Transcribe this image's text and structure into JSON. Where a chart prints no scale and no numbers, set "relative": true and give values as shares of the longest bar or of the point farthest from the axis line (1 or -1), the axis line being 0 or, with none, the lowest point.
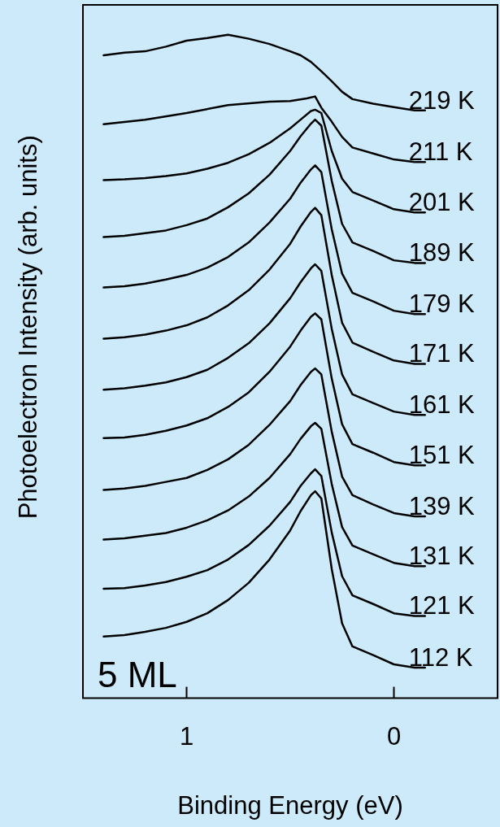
{
  "chart_data": {
    "type": "line",
    "relative": true,
    "xlabel": "Binding Energy (eV)",
    "ylabel": "Photoelectron Intensity (arb. units)",
    "xlim": [
      1.5,
      -0.5
    ],
    "xticks": [
      1,
      0
    ],
    "marker": "none",
    "line_style": "solid",
    "annotations": [
      "5 ML"
    ],
    "x": [
      1.4,
      1.3,
      1.2,
      1.1,
      1.0,
      0.9,
      0.8,
      0.7,
      0.6,
      0.5,
      0.45,
      0.4,
      0.38,
      0.35,
      0.3,
      0.25,
      0.2,
      0.1,
      0,
      -0.1,
      -0.15
    ],
    "series": [
      {
        "name": "219 K",
        "color": "#000000",
        "x": [
          1.4,
          1.3,
          1.2,
          1.1,
          1.0,
          0.9,
          0.8,
          0.7,
          0.6,
          0.5,
          0.45,
          0.4,
          0.35,
          0.3,
          0.25,
          0.2,
          0.1,
          0,
          -0.1,
          -0.15
        ],
        "values": [
          0.969,
          0.973,
          0.975,
          0.982,
          0.991,
          0.995,
          1.0,
          0.994,
          0.986,
          0.975,
          0.969,
          0.959,
          0.945,
          0.93,
          0.914,
          0.903,
          0.896,
          0.891,
          0.886,
          0.886
        ]
      },
      {
        "name": "211 K",
        "color": "#000000",
        "x": [
          1.4,
          1.2,
          1.0,
          0.8,
          0.6,
          0.5,
          0.42,
          0.38,
          0.35,
          0.3,
          0.25,
          0.2,
          0.1,
          0,
          -0.1,
          -0.15
        ],
        "values": [
          0.865,
          0.872,
          0.882,
          0.894,
          0.899,
          0.9,
          0.904,
          0.907,
          0.89,
          0.869,
          0.846,
          0.83,
          0.821,
          0.812,
          0.808,
          0.808
        ]
      },
      {
        "name": "201 K",
        "color": "#000000",
        "values": [
          0.781,
          0.782,
          0.784,
          0.787,
          0.791,
          0.798,
          0.807,
          0.82,
          0.837,
          0.859,
          0.872,
          0.885,
          0.887,
          0.882,
          0.825,
          0.783,
          0.763,
          0.75,
          0.737,
          0.732,
          0.732
        ]
      },
      {
        "name": "189 K",
        "color": "#000000",
        "values": [
          0.695,
          0.697,
          0.701,
          0.705,
          0.713,
          0.723,
          0.74,
          0.761,
          0.789,
          0.825,
          0.847,
          0.866,
          0.872,
          0.863,
          0.78,
          0.715,
          0.687,
          0.674,
          0.66,
          0.656,
          0.656
        ]
      },
      {
        "name": "179 K",
        "color": "#000000",
        "values": [
          0.619,
          0.621,
          0.625,
          0.631,
          0.638,
          0.649,
          0.665,
          0.687,
          0.717,
          0.753,
          0.777,
          0.797,
          0.803,
          0.793,
          0.707,
          0.64,
          0.611,
          0.598,
          0.584,
          0.579,
          0.579
        ]
      },
      {
        "name": "171 K",
        "color": "#000000",
        "values": [
          0.542,
          0.544,
          0.548,
          0.554,
          0.562,
          0.574,
          0.592,
          0.615,
          0.646,
          0.685,
          0.711,
          0.733,
          0.739,
          0.728,
          0.638,
          0.566,
          0.536,
          0.522,
          0.509,
          0.504,
          0.504
        ]
      },
      {
        "name": "161 K",
        "color": "#000000",
        "values": [
          0.465,
          0.467,
          0.471,
          0.476,
          0.484,
          0.495,
          0.513,
          0.535,
          0.565,
          0.603,
          0.627,
          0.648,
          0.654,
          0.644,
          0.557,
          0.488,
          0.458,
          0.445,
          0.432,
          0.427,
          0.427
        ]
      },
      {
        "name": "151 K",
        "color": "#000000",
        "values": [
          0.392,
          0.393,
          0.397,
          0.403,
          0.411,
          0.422,
          0.439,
          0.461,
          0.492,
          0.53,
          0.554,
          0.575,
          0.58,
          0.571,
          0.482,
          0.413,
          0.383,
          0.37,
          0.356,
          0.351,
          0.351
        ]
      },
      {
        "name": "139 K",
        "color": "#000000",
        "values": [
          0.314,
          0.316,
          0.32,
          0.326,
          0.332,
          0.344,
          0.36,
          0.382,
          0.412,
          0.448,
          0.472,
          0.492,
          0.497,
          0.488,
          0.402,
          0.334,
          0.306,
          0.292,
          0.279,
          0.274,
          0.274
        ]
      },
      {
        "name": "131 K",
        "color": "#000000",
        "values": [
          0.239,
          0.241,
          0.245,
          0.249,
          0.257,
          0.268,
          0.283,
          0.304,
          0.332,
          0.368,
          0.391,
          0.41,
          0.415,
          0.406,
          0.323,
          0.258,
          0.23,
          0.217,
          0.204,
          0.199,
          0.199
        ]
      },
      {
        "name": "121 K",
        "color": "#000000",
        "values": [
          0.165,
          0.166,
          0.17,
          0.175,
          0.183,
          0.193,
          0.209,
          0.231,
          0.26,
          0.296,
          0.32,
          0.339,
          0.345,
          0.335,
          0.25,
          0.184,
          0.155,
          0.142,
          0.128,
          0.124,
          0.124
        ]
      },
      {
        "name": "112 K",
        "color": "#000000",
        "values": [
          0.093,
          0.095,
          0.1,
          0.106,
          0.115,
          0.128,
          0.148,
          0.174,
          0.209,
          0.253,
          0.282,
          0.306,
          0.312,
          0.301,
          0.195,
          0.113,
          0.078,
          0.065,
          0.051,
          0.046,
          0.046
        ]
      }
    ]
  }
}
